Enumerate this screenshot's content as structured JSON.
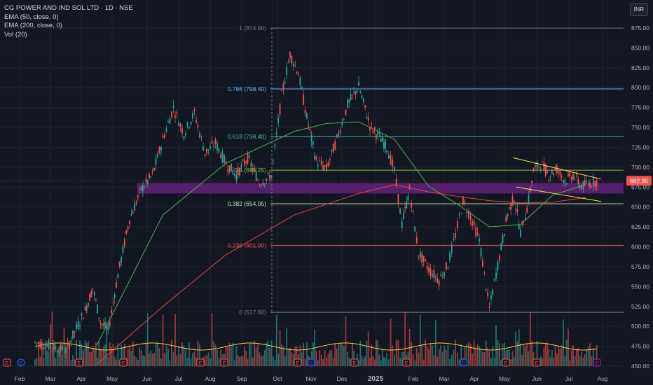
{
  "header": {
    "title": "CG POWER AND IND SOL LTD · 1D · NSE",
    "indicators": [
      "EMA (50, close, 0)",
      "EMA (200, close, 0)",
      "Vol (20)"
    ],
    "currency_button": "INR"
  },
  "colors": {
    "background": "#131722",
    "grid": "#1f2330",
    "axis_text": "#b2b5be",
    "up": "#26a69a",
    "down": "#ef5350",
    "ema50": "#4caf50",
    "ema200": "#e0473f",
    "volume_ma": "#f7c948",
    "trendline": "#f5e04a",
    "support_zone": "#8e24aa",
    "price_label_bg": "#ef5350"
  },
  "chart_data": {
    "type": "candlestick",
    "symbol": "CG POWER AND IND SOL LTD",
    "timeframe": "1D",
    "exchange": "NSE",
    "currency": "INR",
    "last_price": "682.95",
    "ylim": [
      450,
      885
    ],
    "y_ticks": [
      "875.00",
      "850.00",
      "825.00",
      "800.00",
      "775.00",
      "750.00",
      "725.00",
      "700.00",
      "675.00",
      "650.00",
      "625.00",
      "600.00",
      "575.00",
      "550.00",
      "525.00",
      "500.00",
      "475.00",
      "450.00"
    ],
    "x_ticks": [
      "Feb",
      "Mar",
      "Apr",
      "May",
      "Jun",
      "Jul",
      "Aug",
      "Sep",
      "Oct",
      "Nov",
      "Dec",
      "2025",
      "Feb",
      "Mar",
      "Apr",
      "May",
      "Jun",
      "Jul",
      "Aug"
    ],
    "fibonacci": [
      {
        "label": "1 (874.90)",
        "value": 874.9,
        "color": "#787b86"
      },
      {
        "label": "0.786 (798.40)",
        "value": 798.4,
        "color": "#64b5f6"
      },
      {
        "label": "0.618 (738.40)",
        "value": 738.4,
        "color": "#4db6ac"
      },
      {
        "label": "0.5 (696.25)",
        "value": 696.25,
        "color": "#8bc34a"
      },
      {
        "label": "0.382 (654.05)",
        "value": 654.05,
        "color": "#c5e1a5"
      },
      {
        "label": "0.236 (601.90)",
        "value": 601.9,
        "color": "#ef5350"
      },
      {
        "label": "0 (517.60)",
        "value": 517.6,
        "color": "#787b86"
      }
    ],
    "support_zone": [
      667,
      680
    ],
    "wedge": {
      "upper": [
        [
          "May",
          712
        ],
        [
          "Aug",
          685
        ]
      ],
      "lower": [
        [
          "May",
          675
        ],
        [
          "Aug",
          657
        ]
      ]
    },
    "price_path": [
      [
        "Jan",
        505
      ],
      [
        "Feb",
        480
      ],
      [
        "Mar",
        470
      ],
      [
        "Apr",
        520
      ],
      [
        "Apr",
        548
      ],
      [
        "Apr",
        505
      ],
      [
        "Apr",
        495
      ],
      [
        "May",
        565
      ],
      [
        "May",
        635
      ],
      [
        "May",
        672
      ],
      [
        "Jun",
        690
      ],
      [
        "Jun",
        735
      ],
      [
        "Jun",
        775
      ],
      [
        "Jul",
        742
      ],
      [
        "Jul",
        768
      ],
      [
        "Jul",
        718
      ],
      [
        "Aug",
        730
      ],
      [
        "Aug",
        705
      ],
      [
        "Aug",
        690
      ],
      [
        "Sep",
        712
      ],
      [
        "Sep",
        680
      ],
      [
        "Sep",
        690
      ],
      [
        "Oct",
        790
      ],
      [
        "Oct",
        842
      ],
      [
        "Oct",
        818
      ],
      [
        "Oct",
        762
      ],
      [
        "Nov",
        708
      ],
      [
        "Nov",
        698
      ],
      [
        "Nov",
        735
      ],
      [
        "Dec",
        778
      ],
      [
        "Dec",
        802
      ],
      [
        "Dec",
        752
      ],
      [
        "2025",
        738
      ],
      [
        "2025",
        725
      ],
      [
        "2025",
        695
      ],
      [
        "2025",
        628
      ],
      [
        "2025",
        672
      ],
      [
        "Feb",
        592
      ],
      [
        "Feb",
        572
      ],
      [
        "Feb",
        558
      ],
      [
        "Mar",
        578
      ],
      [
        "Mar",
        615
      ],
      [
        "Mar",
        658
      ],
      [
        "Mar",
        638
      ],
      [
        "Apr",
        608
      ],
      [
        "Apr",
        522
      ],
      [
        "Apr",
        588
      ],
      [
        "May",
        642
      ],
      [
        "May",
        662
      ],
      [
        "May",
        618
      ],
      [
        "May",
        648
      ],
      [
        "May",
        695
      ],
      [
        "Jun",
        705
      ],
      [
        "Jun",
        690
      ],
      [
        "Jun",
        698
      ],
      [
        "Jun",
        683
      ],
      [
        "Jul",
        690
      ],
      [
        "Jul",
        676
      ],
      [
        "Jul",
        680
      ],
      [
        "Jul",
        682.95
      ]
    ],
    "ema50_path": [
      [
        "Apr",
        476
      ],
      [
        "Jun",
        640
      ],
      [
        "Aug",
        705
      ],
      [
        "Oct",
        745
      ],
      [
        "Nov",
        755
      ],
      [
        "Dec",
        757
      ],
      [
        "2025",
        735
      ],
      [
        "Feb",
        676
      ],
      [
        "Mar",
        652
      ],
      [
        "Apr",
        625
      ],
      [
        "May",
        628
      ],
      [
        "Jun",
        665
      ],
      [
        "Jul",
        678
      ]
    ],
    "ema200_path": [
      [
        "Apr",
        452
      ],
      [
        "Jun",
        525
      ],
      [
        "Aug",
        590
      ],
      [
        "Oct",
        640
      ],
      [
        "Dec",
        667
      ],
      [
        "2025",
        678
      ],
      [
        "Feb",
        669
      ],
      [
        "Mar",
        663
      ],
      [
        "Apr",
        658
      ],
      [
        "May",
        655
      ],
      [
        "Jun",
        656
      ],
      [
        "Jul",
        662
      ]
    ],
    "events": [
      {
        "x": "Feb",
        "type": "E"
      },
      {
        "x": "Feb",
        "type": "D"
      },
      {
        "x": "Apr",
        "type": "E"
      },
      {
        "x": "May",
        "type": "E"
      },
      {
        "x": "Jun",
        "type": "E"
      },
      {
        "x": "Aug",
        "type": "E"
      },
      {
        "x": "Oct",
        "type": "E"
      },
      {
        "x": "Oct",
        "type": "D"
      },
      {
        "x": "Nov",
        "type": "E"
      },
      {
        "x": "Feb",
        "type": "E"
      },
      {
        "x": "Apr",
        "type": "D"
      },
      {
        "x": "May",
        "type": "E"
      },
      {
        "x": "Jun",
        "type": "E"
      },
      {
        "x": "Aug",
        "type": "E"
      }
    ]
  }
}
